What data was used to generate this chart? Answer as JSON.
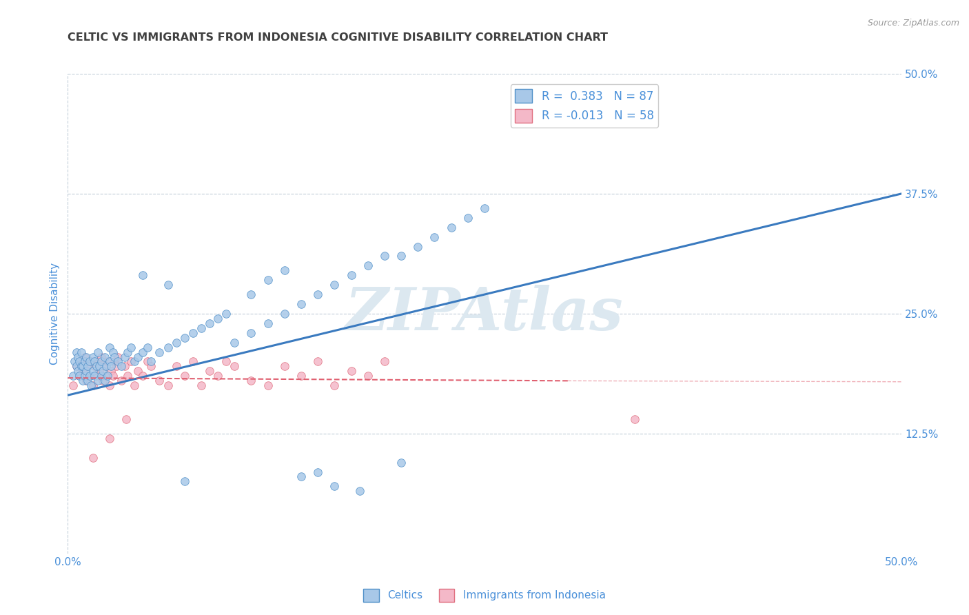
{
  "title": "CELTIC VS IMMIGRANTS FROM INDONESIA COGNITIVE DISABILITY CORRELATION CHART",
  "source_text": "Source: ZipAtlas.com",
  "ylabel": "Cognitive Disability",
  "xlim": [
    0.0,
    0.5
  ],
  "ylim": [
    0.0,
    0.5
  ],
  "ytick_labels_right": [
    "12.5%",
    "25.0%",
    "37.5%",
    "50.0%"
  ],
  "yticks_right": [
    0.125,
    0.25,
    0.375,
    0.5
  ],
  "bottom_legend": [
    "Celtics",
    "Immigrants from Indonesia"
  ],
  "celtics_color": "#a8c8e8",
  "indonesia_color": "#f4b8c8",
  "celtics_edge_color": "#5090c8",
  "indonesia_edge_color": "#e07080",
  "celtics_line_color": "#3a7abf",
  "indonesia_line_color": "#e06070",
  "watermark": "ZIPAtlas",
  "watermark_color": "#dce8f0",
  "title_color": "#404040",
  "axis_label_color": "#4a90d9",
  "background_color": "#ffffff",
  "grid_color": "#c0ccd8",
  "celtics_trend_x": [
    0.0,
    0.5
  ],
  "celtics_trend_y": [
    0.165,
    0.375
  ],
  "indonesia_trend_x": [
    0.0,
    0.3
  ],
  "indonesia_trend_y": [
    0.183,
    0.18
  ],
  "celtics_scatter_x": [
    0.003,
    0.004,
    0.005,
    0.005,
    0.006,
    0.006,
    0.007,
    0.007,
    0.008,
    0.008,
    0.009,
    0.009,
    0.01,
    0.01,
    0.011,
    0.011,
    0.012,
    0.012,
    0.013,
    0.013,
    0.014,
    0.015,
    0.015,
    0.016,
    0.016,
    0.017,
    0.018,
    0.018,
    0.019,
    0.02,
    0.02,
    0.021,
    0.022,
    0.022,
    0.023,
    0.024,
    0.025,
    0.025,
    0.026,
    0.027,
    0.028,
    0.03,
    0.032,
    0.034,
    0.036,
    0.038,
    0.04,
    0.042,
    0.045,
    0.048,
    0.05,
    0.055,
    0.06,
    0.065,
    0.07,
    0.075,
    0.08,
    0.085,
    0.09,
    0.095,
    0.1,
    0.11,
    0.12,
    0.13,
    0.14,
    0.15,
    0.16,
    0.17,
    0.18,
    0.19,
    0.2,
    0.21,
    0.22,
    0.23,
    0.24,
    0.25,
    0.14,
    0.07,
    0.15,
    0.2,
    0.11,
    0.12,
    0.13,
    0.16,
    0.175,
    0.06,
    0.045
  ],
  "celtics_scatter_y": [
    0.185,
    0.2,
    0.195,
    0.21,
    0.19,
    0.205,
    0.185,
    0.2,
    0.195,
    0.21,
    0.18,
    0.195,
    0.185,
    0.2,
    0.19,
    0.205,
    0.18,
    0.195,
    0.185,
    0.2,
    0.175,
    0.19,
    0.205,
    0.185,
    0.2,
    0.195,
    0.21,
    0.18,
    0.195,
    0.185,
    0.2,
    0.19,
    0.205,
    0.18,
    0.195,
    0.185,
    0.2,
    0.215,
    0.195,
    0.21,
    0.205,
    0.2,
    0.195,
    0.205,
    0.21,
    0.215,
    0.2,
    0.205,
    0.21,
    0.215,
    0.2,
    0.21,
    0.215,
    0.22,
    0.225,
    0.23,
    0.235,
    0.24,
    0.245,
    0.25,
    0.22,
    0.23,
    0.24,
    0.25,
    0.26,
    0.27,
    0.28,
    0.29,
    0.3,
    0.31,
    0.31,
    0.32,
    0.33,
    0.34,
    0.35,
    0.36,
    0.08,
    0.075,
    0.085,
    0.095,
    0.27,
    0.285,
    0.295,
    0.07,
    0.065,
    0.28,
    0.29
  ],
  "indonesia_scatter_x": [
    0.003,
    0.005,
    0.007,
    0.008,
    0.009,
    0.01,
    0.011,
    0.012,
    0.013,
    0.014,
    0.015,
    0.016,
    0.017,
    0.018,
    0.019,
    0.02,
    0.021,
    0.022,
    0.023,
    0.024,
    0.025,
    0.026,
    0.027,
    0.028,
    0.029,
    0.03,
    0.032,
    0.034,
    0.036,
    0.038,
    0.04,
    0.042,
    0.045,
    0.048,
    0.05,
    0.055,
    0.06,
    0.065,
    0.07,
    0.075,
    0.08,
    0.085,
    0.09,
    0.095,
    0.1,
    0.11,
    0.12,
    0.13,
    0.14,
    0.15,
    0.16,
    0.17,
    0.18,
    0.19,
    0.34,
    0.015,
    0.025,
    0.035
  ],
  "indonesia_scatter_y": [
    0.175,
    0.195,
    0.185,
    0.2,
    0.19,
    0.205,
    0.18,
    0.195,
    0.185,
    0.2,
    0.175,
    0.195,
    0.185,
    0.2,
    0.19,
    0.205,
    0.18,
    0.195,
    0.185,
    0.2,
    0.175,
    0.19,
    0.185,
    0.2,
    0.195,
    0.205,
    0.18,
    0.195,
    0.185,
    0.2,
    0.175,
    0.19,
    0.185,
    0.2,
    0.195,
    0.18,
    0.175,
    0.195,
    0.185,
    0.2,
    0.175,
    0.19,
    0.185,
    0.2,
    0.195,
    0.18,
    0.175,
    0.195,
    0.185,
    0.2,
    0.175,
    0.19,
    0.185,
    0.2,
    0.14,
    0.1,
    0.12,
    0.14
  ]
}
